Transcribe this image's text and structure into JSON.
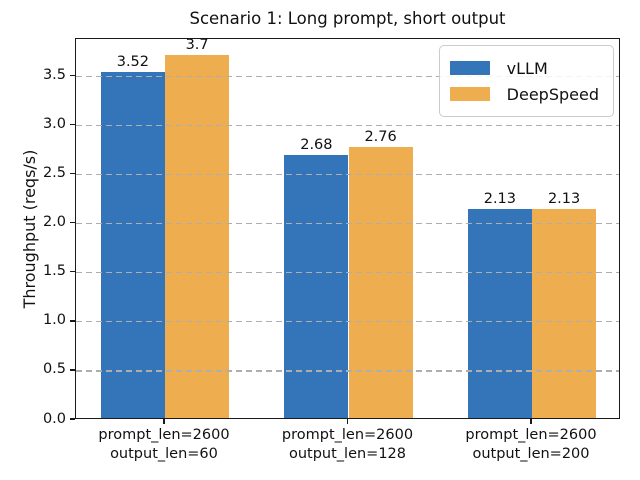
{
  "chart_data": {
    "type": "bar",
    "title": "Scenario 1: Long prompt, short output",
    "ylabel": "Throughput (reqs/s)",
    "xlabel": "",
    "categories": [
      {
        "line1": "prompt_len=2600",
        "line2": "output_len=60"
      },
      {
        "line1": "prompt_len=2600",
        "line2": "output_len=128"
      },
      {
        "line1": "prompt_len=2600",
        "line2": "output_len=200"
      }
    ],
    "series": [
      {
        "name": "vLLM",
        "color": "#3375b8",
        "values": [
          3.52,
          2.68,
          2.13
        ]
      },
      {
        "name": "DeepSpeed",
        "color": "#eead4e",
        "values": [
          3.7,
          2.76,
          2.13
        ]
      }
    ],
    "bar_labels": [
      [
        "3.52",
        "2.68",
        "2.13"
      ],
      [
        "3.7",
        "2.76",
        "2.13"
      ]
    ],
    "ylim": [
      0,
      3.88
    ],
    "yticks": [
      "0.0",
      "0.5",
      "1.0",
      "1.5",
      "2.0",
      "2.5",
      "3.0",
      "3.5"
    ],
    "grid": "horizontal-dashed",
    "grid_color": "#aeaeae",
    "legend_position": "upper right",
    "bar_width_fraction": 0.35
  }
}
